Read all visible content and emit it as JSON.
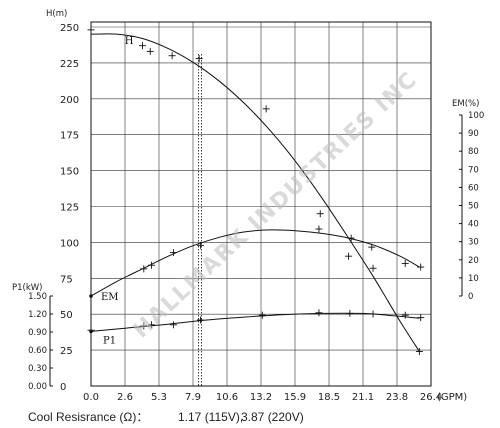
{
  "chart_data": {
    "type": "line",
    "xlabel": "(GPM)",
    "x_ticks": [
      "0.0",
      "2.6",
      "5.3",
      "7.9",
      "10.6",
      "13.2",
      "15.9",
      "18.5",
      "21.1",
      "23.8",
      "26.4"
    ],
    "xlim": [
      0,
      26.4
    ],
    "grid": true,
    "axes": {
      "head": {
        "label": "H(m)",
        "ticks": [
          "0",
          "25",
          "50",
          "75",
          "100",
          "125",
          "150",
          "175",
          "200",
          "225",
          "250"
        ],
        "lim": [
          0,
          250
        ]
      },
      "efficiency": {
        "label": "EM(%)",
        "ticks": [
          "0",
          "10",
          "20",
          "30",
          "40",
          "50",
          "60",
          "70",
          "80",
          "90",
          "100"
        ],
        "lim": [
          0,
          100
        ]
      },
      "power": {
        "label": "P1(kW)",
        "ticks": [
          "0.00",
          "0.30",
          "0.60",
          "0.90",
          "1.20",
          "1.50"
        ],
        "lim": [
          0,
          1.5
        ]
      }
    },
    "series": [
      {
        "name": "H",
        "axis": "head",
        "x": [
          0,
          2,
          4,
          6,
          8,
          10,
          12,
          14,
          16,
          18,
          20,
          22,
          24,
          25.5
        ],
        "y": [
          245,
          245,
          242,
          235,
          225,
          212,
          196,
          177,
          155,
          130,
          103,
          75,
          45,
          24
        ],
        "markers": {
          "x": [
            0,
            4,
            4.6,
            6.3,
            8.4,
            13.6,
            17.8,
            20.2,
            21.9,
            25.5
          ],
          "y": [
            248,
            237,
            233,
            230,
            228,
            193,
            120,
            103,
            82,
            24
          ]
        }
      },
      {
        "name": "EM",
        "axis": "efficiency",
        "x": [
          0,
          2,
          4,
          6,
          8,
          10,
          12,
          14,
          16,
          18,
          20,
          22,
          24,
          25.5
        ],
        "y": [
          0,
          8,
          15,
          22,
          28,
          32.5,
          35.5,
          36.5,
          36,
          34.5,
          32,
          28,
          22,
          16
        ],
        "markers": {
          "x": [
            4.1,
            4.7,
            6.4,
            8.5,
            17.7,
            20.0,
            21.8,
            24.4,
            25.6
          ],
          "y": [
            15,
            17,
            24,
            28,
            37,
            22,
            27,
            18,
            16
          ]
        }
      },
      {
        "name": "P1",
        "axis": "power",
        "x": [
          0,
          3,
          6,
          9,
          12,
          15,
          18,
          21,
          23,
          25.5
        ],
        "y": [
          0.91,
          0.97,
          1.03,
          1.1,
          1.15,
          1.19,
          1.21,
          1.21,
          1.18,
          1.13
        ],
        "markers": {
          "x": [
            0,
            4.1,
            4.7,
            6.4,
            8.5,
            13.3,
            17.7,
            20.1,
            21.9,
            24.4,
            25.6
          ],
          "y": [
            0.93,
            1.0,
            1.02,
            1.02,
            1.1,
            1.18,
            1.22,
            1.21,
            1.2,
            1.18,
            1.14
          ]
        }
      }
    ],
    "reference_line_x": 8.5
  },
  "footer": {
    "label": "Cool Resisrance (Ω)：",
    "value_115": "1.17 (115V),",
    "value_220": "3.87 (220V)"
  },
  "watermark": "HALLMARK INDUSTRIES INC"
}
